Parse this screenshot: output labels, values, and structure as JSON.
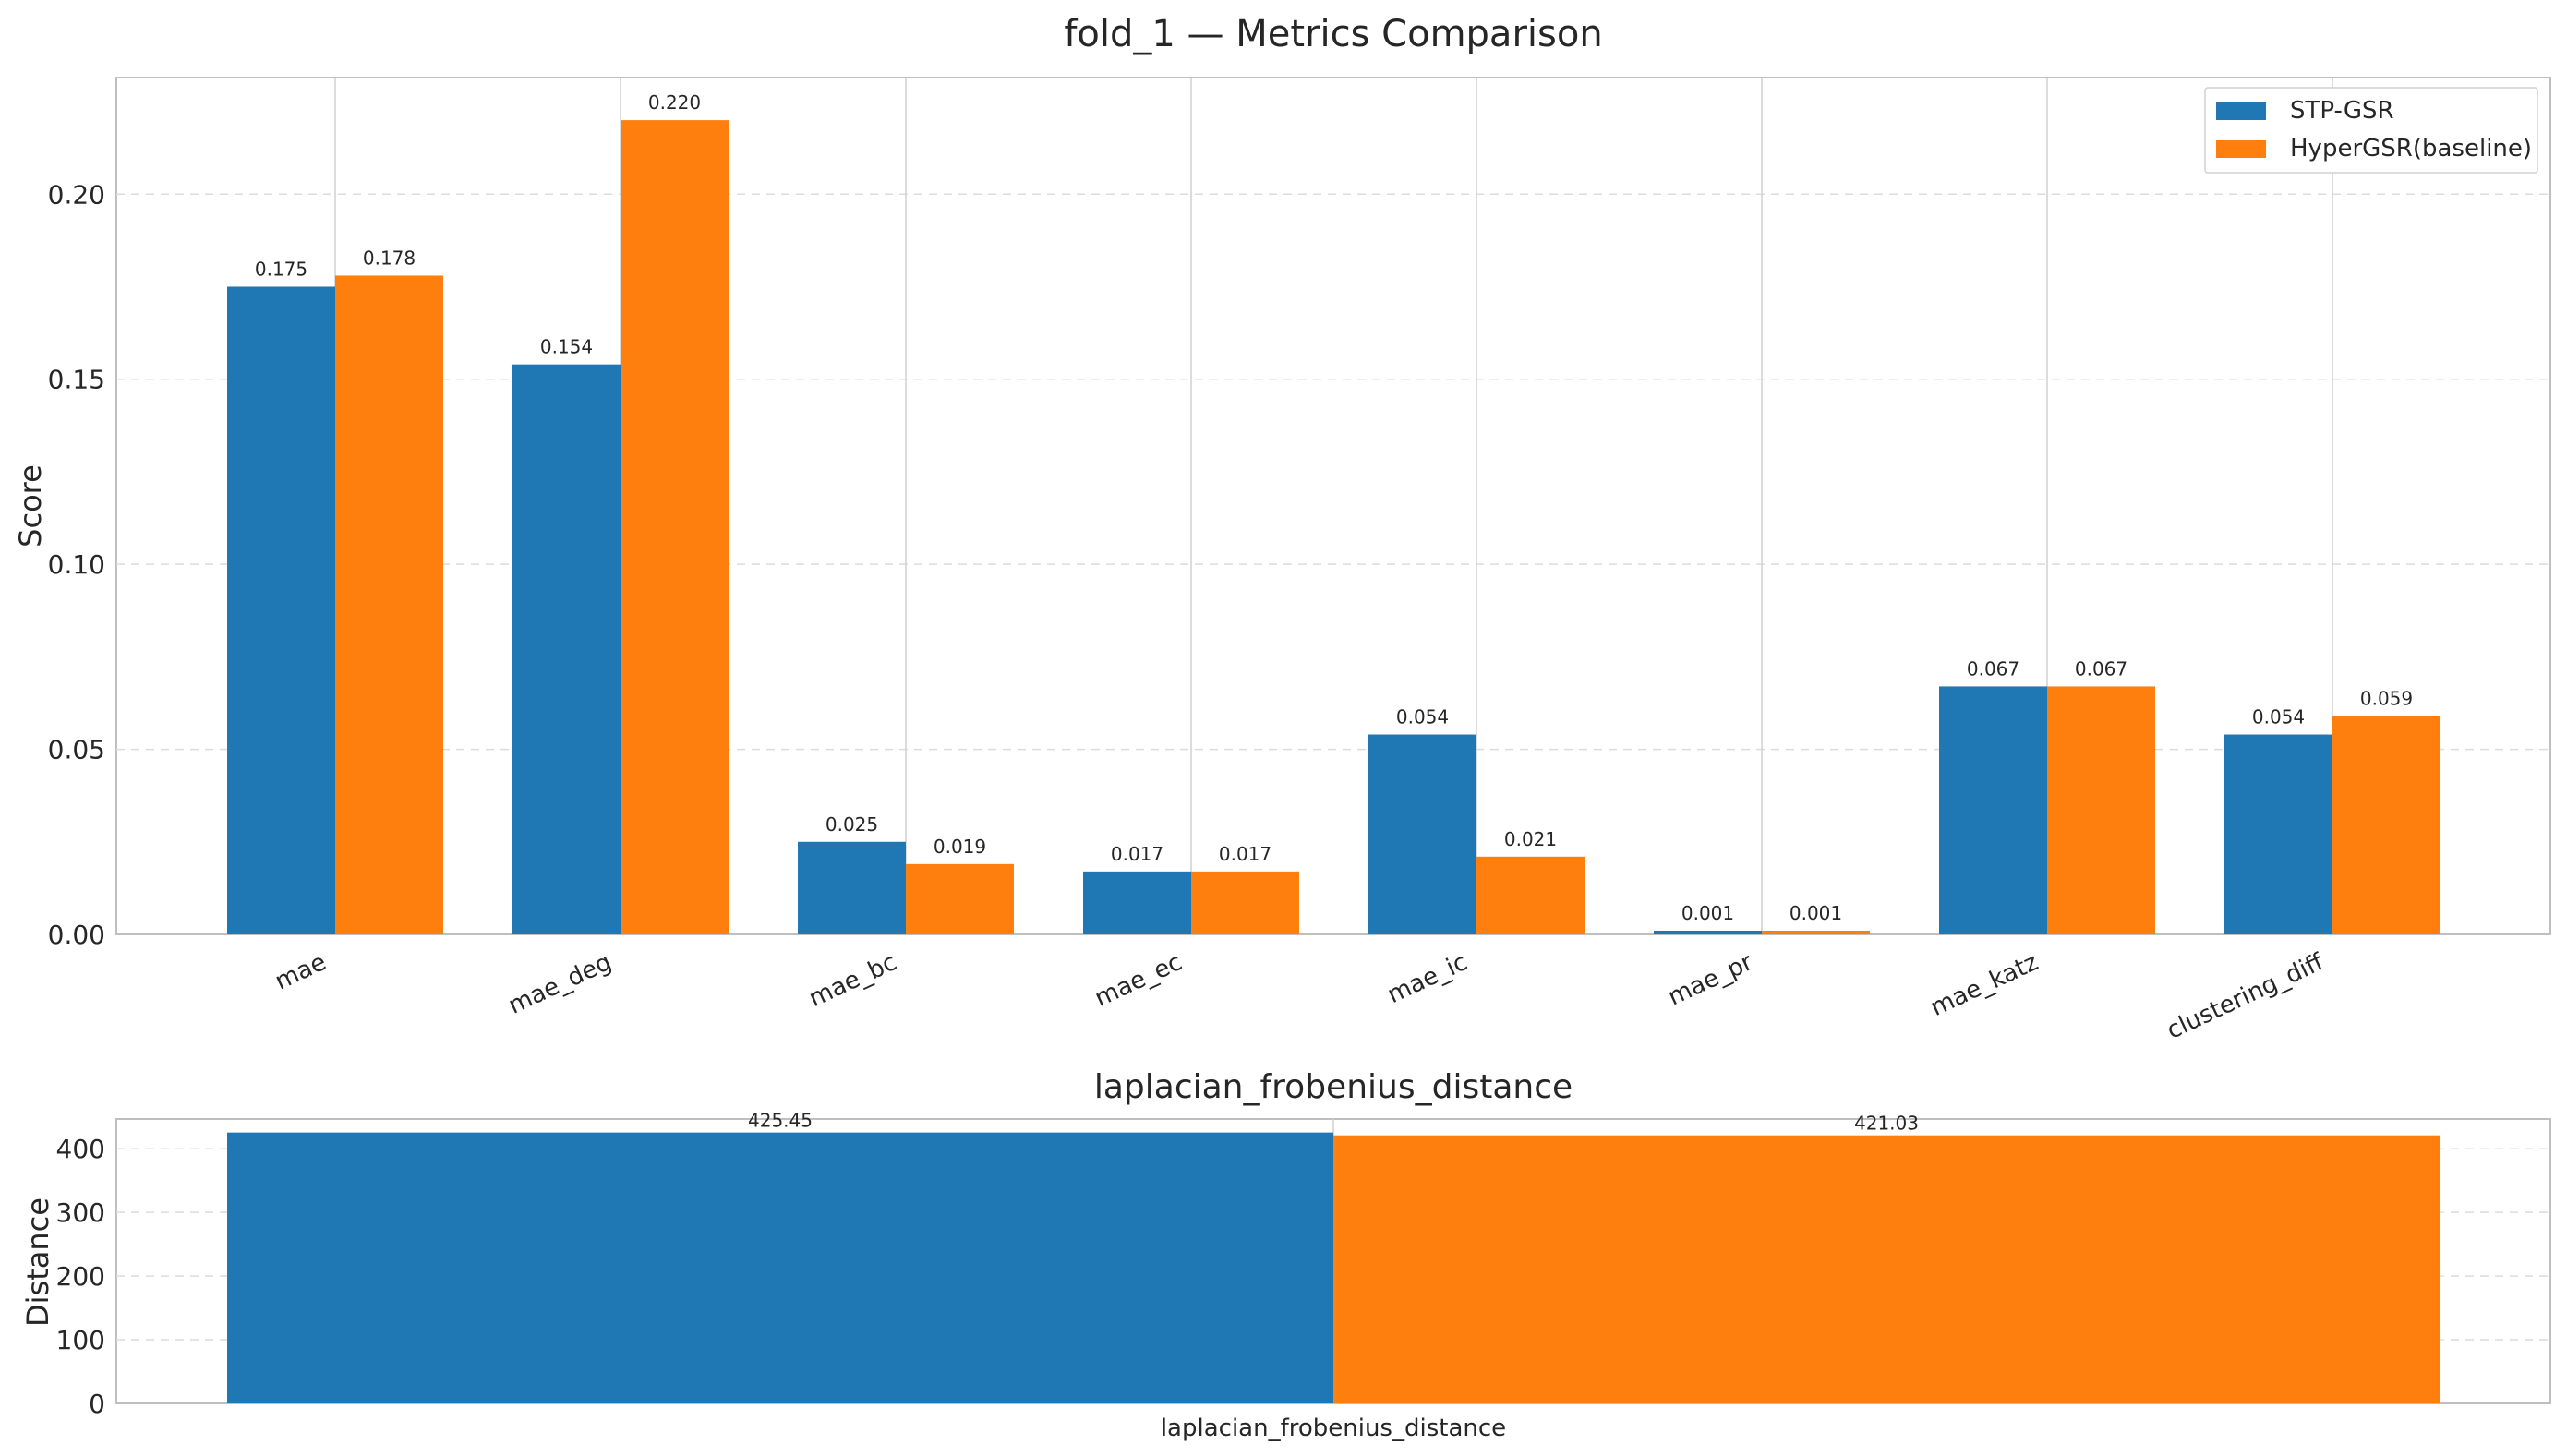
{
  "figure_title": "fold_1 — Metrics Comparison",
  "colors": {
    "STP-GSR": "#1f77b4",
    "HyperGSR(baseline)": "#ff7f0e",
    "grid": "#d9d9d9",
    "axis": "#bfbfbf"
  },
  "chart_data": [
    {
      "type": "bar",
      "title": "",
      "xlabel": "",
      "ylabel": "Score",
      "ylim": [
        0,
        0.2315
      ],
      "yticks": [
        "0.00",
        "0.05",
        "0.10",
        "0.15",
        "0.20"
      ],
      "categories": [
        "mae",
        "mae_deg",
        "mae_bc",
        "mae_ec",
        "mae_ic",
        "mae_pr",
        "mae_katz",
        "clustering_diff"
      ],
      "series": [
        {
          "name": "STP-GSR",
          "values": [
            0.175,
            0.154,
            0.025,
            0.017,
            0.054,
            0.001,
            0.067,
            0.054
          ],
          "labels": [
            "0.175",
            "0.154",
            "0.025",
            "0.017",
            "0.054",
            "0.001",
            "0.067",
            "0.054"
          ]
        },
        {
          "name": "HyperGSR(baseline)",
          "values": [
            0.178,
            0.22,
            0.019,
            0.017,
            0.021,
            0.001,
            0.067,
            0.059
          ],
          "labels": [
            "0.178",
            "0.220",
            "0.019",
            "0.017",
            "0.021",
            "0.001",
            "0.067",
            "0.059"
          ]
        }
      ],
      "legend": "top-right",
      "grid": true
    },
    {
      "type": "bar",
      "title": "laplacian_frobenius_distance",
      "xlabel": "",
      "ylabel": "Distance",
      "ylim": [
        0,
        446.7
      ],
      "yticks": [
        "0",
        "100",
        "200",
        "300",
        "400"
      ],
      "categories": [
        "laplacian_frobenius_distance"
      ],
      "series": [
        {
          "name": "STP-GSR",
          "values": [
            425.45
          ],
          "labels": [
            "425.45"
          ]
        },
        {
          "name": "HyperGSR(baseline)",
          "values": [
            421.03
          ],
          "labels": [
            "421.03"
          ]
        }
      ],
      "grid": true
    }
  ]
}
